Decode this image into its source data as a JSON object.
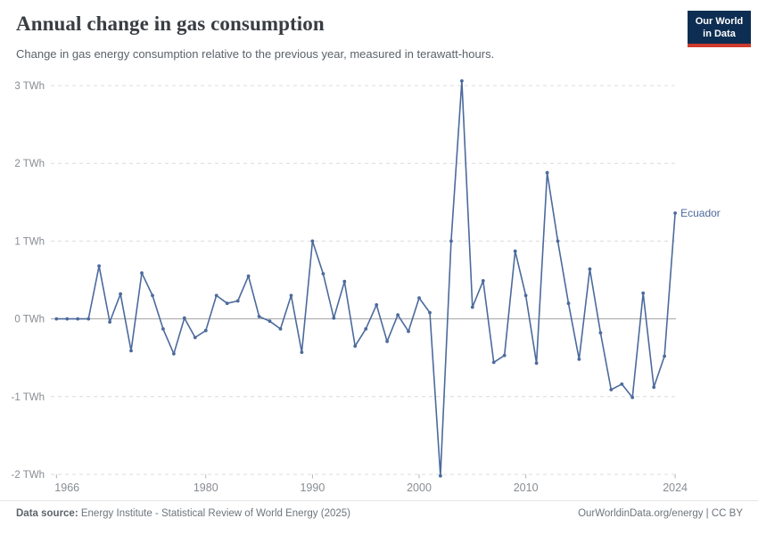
{
  "header": {
    "title": "Annual change in gas consumption",
    "subtitle": "Change in gas energy consumption relative to the previous year, measured in terawatt-hours.",
    "logo": {
      "line1": "Our World",
      "line2": "in Data"
    }
  },
  "chart_data": {
    "type": "line",
    "title": "Annual change in gas consumption",
    "ylabel": "TWh",
    "ylim": [
      -2,
      3
    ],
    "xlim": [
      1966,
      2024
    ],
    "grid": "horizontal-dashed",
    "legend_position": "end-of-line-label",
    "y_ticks": [
      {
        "value": 3,
        "label": "3 TWh"
      },
      {
        "value": 2,
        "label": "2 TWh"
      },
      {
        "value": 1,
        "label": "1 TWh"
      },
      {
        "value": 0,
        "label": "0 TWh"
      },
      {
        "value": -1,
        "label": "-1 TWh"
      },
      {
        "value": -2,
        "label": "-2 TWh"
      }
    ],
    "x_ticks": [
      1966,
      1980,
      1990,
      2000,
      2010,
      2024
    ],
    "series": [
      {
        "name": "Ecuador",
        "color": "#4C6A9C",
        "x": [
          1966,
          1967,
          1968,
          1969,
          1970,
          1971,
          1972,
          1973,
          1974,
          1975,
          1976,
          1977,
          1978,
          1979,
          1980,
          1981,
          1982,
          1983,
          1984,
          1985,
          1986,
          1987,
          1988,
          1989,
          1990,
          1991,
          1992,
          1993,
          1994,
          1995,
          1996,
          1997,
          1998,
          1999,
          2000,
          2001,
          2002,
          2003,
          2004,
          2005,
          2006,
          2007,
          2008,
          2009,
          2010,
          2011,
          2012,
          2013,
          2014,
          2015,
          2016,
          2017,
          2018,
          2019,
          2020,
          2021,
          2022,
          2023,
          2024
        ],
        "values": [
          0,
          0,
          0,
          0,
          0.68,
          -0.04,
          0.32,
          -0.41,
          0.59,
          0.3,
          -0.13,
          -0.45,
          0.01,
          -0.24,
          -0.15,
          0.3,
          0.2,
          0.23,
          0.55,
          0.03,
          -0.03,
          -0.13,
          0.3,
          -0.43,
          1.0,
          0.58,
          0.01,
          0.48,
          -0.35,
          -0.13,
          0.18,
          -0.29,
          0.05,
          -0.16,
          0.27,
          0.08,
          -2.02,
          1.0,
          3.06,
          0.15,
          0.49,
          -0.56,
          -0.47,
          0.87,
          0.3,
          -0.57,
          1.88,
          1.0,
          0.2,
          -0.52,
          0.64,
          -0.18,
          -0.91,
          -0.84,
          -1.01,
          0.33,
          -0.88,
          -0.48,
          1.36
        ]
      }
    ]
  },
  "footer": {
    "datasource_label": "Data source:",
    "datasource_text": " Energy Institute - Statistical Review of World Energy (2025)",
    "credit": "OurWorldinData.org/energy | CC BY"
  },
  "colors": {
    "series_blue": "#4C6A9C",
    "gridline": "#dcdcdc",
    "zero_line": "#a3a3a3",
    "tick_text": "#888c92",
    "logo_navy": "#0d2e52",
    "logo_red": "#cd3a2e"
  }
}
